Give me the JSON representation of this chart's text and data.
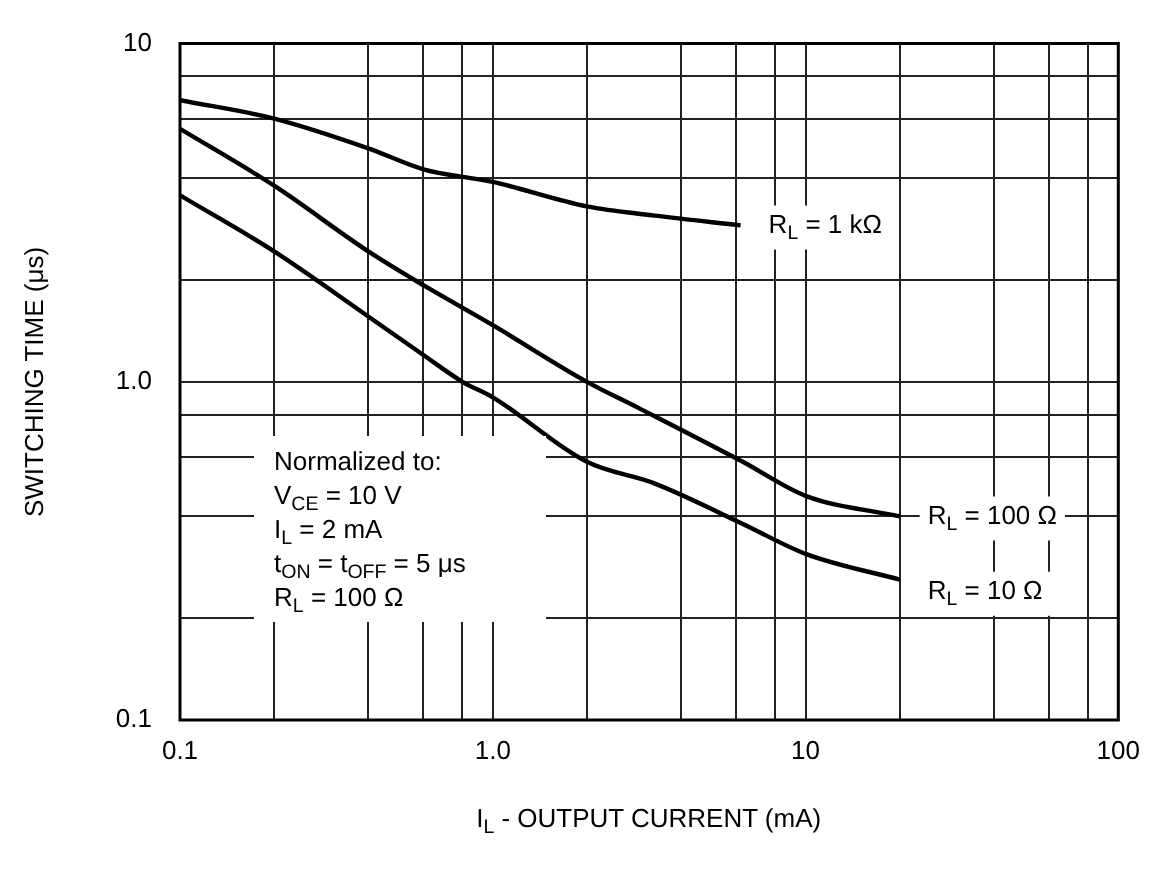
{
  "chart_data": {
    "type": "line",
    "xlabel": "I$_{L}$ - OUTPUT CURRENT (mA)",
    "ylabel": "SWITCHING TIME (μs)",
    "log": "xy",
    "grid": true,
    "legend": false,
    "marker": "none",
    "line_style": "solid",
    "xlim": [
      0.1,
      100
    ],
    "ylim": [
      0.1,
      10
    ],
    "xticks": [
      0.1,
      {
        "value": 0.2,
        "label": null
      },
      {
        "value": 0.4,
        "label": null
      },
      {
        "value": 0.6,
        "label": null
      },
      {
        "value": 0.8,
        "label": null
      },
      {
        "value": 1,
        "label": "1.0"
      },
      {
        "value": 2,
        "label": null
      },
      {
        "value": 4,
        "label": null
      },
      {
        "value": 6,
        "label": null
      },
      {
        "value": 8,
        "label": null
      },
      10,
      {
        "value": 20,
        "label": null
      },
      {
        "value": 40,
        "label": null
      },
      {
        "value": 60,
        "label": null
      },
      {
        "value": 80,
        "label": null
      },
      100
    ],
    "yticks": [
      0.1,
      {
        "value": 0.2,
        "label": null
      },
      {
        "value": 0.4,
        "label": null
      },
      {
        "value": 0.6,
        "label": null
      },
      {
        "value": 0.8,
        "label": null
      },
      {
        "value": 1,
        "label": "1.0"
      },
      {
        "value": 2,
        "label": null
      },
      {
        "value": 4,
        "label": null
      },
      {
        "value": 6,
        "label": null
      },
      {
        "value": 8,
        "label": null
      },
      10
    ],
    "series": [
      {
        "name": "R$_{L}$ = 1 kΩ",
        "color": "#000000",
        "x": [
          0.1,
          0.2,
          0.4,
          0.6,
          1,
          2,
          3.3,
          6.2
        ],
        "values": [
          6.8,
          6.0,
          4.9,
          4.25,
          3.9,
          3.3,
          3.1,
          2.9
        ]
      },
      {
        "name": "R$_{L}$ = 100 Ω",
        "color": "#000000",
        "x": [
          0.1,
          0.2,
          0.4,
          0.6,
          1,
          2,
          2.9,
          6.3,
          10,
          20
        ],
        "values": [
          5.6,
          3.8,
          2.43,
          1.93,
          1.47,
          1.0,
          0.84,
          0.58,
          0.46,
          0.4
        ]
      },
      {
        "name": "R$_{L}$ = 10 Ω",
        "color": "#000000",
        "x": [
          0.1,
          0.2,
          0.4,
          0.6,
          0.8,
          1,
          2,
          3.3,
          6.3,
          10,
          20
        ],
        "values": [
          3.56,
          2.43,
          1.56,
          1.2,
          1.0,
          0.9,
          0.58,
          0.5,
          0.38,
          0.31,
          0.26
        ]
      }
    ],
    "annotations": [
      "Normalized to:\nV$_{CE}$ = 10 V\nI$_{L}$ = 2 mA\nt$_{ON}$ = t$_{OFF}$ = 5 μs\nR$_{L}$ = 100 Ω"
    ]
  }
}
